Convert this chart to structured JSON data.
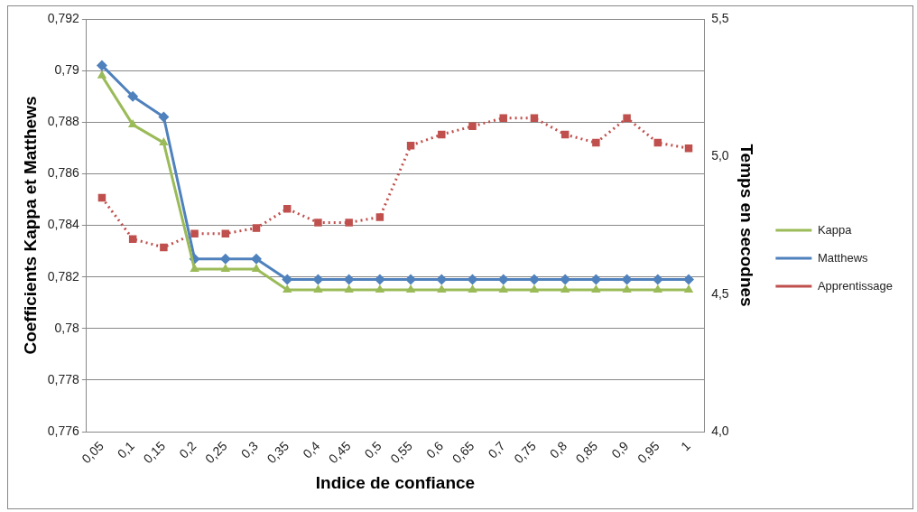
{
  "chart_data": {
    "type": "line",
    "xlabel": "Indice de confiance",
    "ylabel": "Coefficients Kappa et Matthews",
    "y2label": "Temps en secodnes",
    "categories": [
      "0,05",
      "0,1",
      "0,15",
      "0,2",
      "0,25",
      "0,3",
      "0,35",
      "0,4",
      "0,45",
      "0,5",
      "0,55",
      "0,6",
      "0,65",
      "0,7",
      "0,75",
      "0,8",
      "0,85",
      "0,9",
      "0,95",
      "1"
    ],
    "series": [
      {
        "name": "Kappa",
        "color": "#9bbb59",
        "marker": "triangle",
        "line_style": "solid",
        "values": [
          0.7898,
          0.7879,
          0.7872,
          0.7823,
          0.7823,
          0.7823,
          0.7815,
          0.7815,
          0.7815,
          0.7815,
          0.7815,
          0.7815,
          0.7815,
          0.7815,
          0.7815,
          0.7815,
          0.7815,
          0.7815,
          0.7815,
          0.7815
        ]
      },
      {
        "name": "Matthews",
        "color": "#4f81bd",
        "marker": "diamond",
        "line_style": "solid",
        "values": [
          0.7902,
          0.789,
          0.7882,
          0.7827,
          0.7827,
          0.7827,
          0.7819,
          0.7819,
          0.7819,
          0.7819,
          0.7819,
          0.7819,
          0.7819,
          0.7819,
          0.7819,
          0.7819,
          0.7819,
          0.7819,
          0.7819,
          0.7819
        ]
      },
      {
        "name": "Apprentissage",
        "color": "#c0504d",
        "marker": "square",
        "line_style": "dotted",
        "axis": "y2",
        "values": [
          4.85,
          4.7,
          4.67,
          4.72,
          4.72,
          4.74,
          4.81,
          4.76,
          4.76,
          4.78,
          5.04,
          5.08,
          5.11,
          5.14,
          5.14,
          5.08,
          5.05,
          5.14,
          5.05,
          5.03
        ]
      }
    ],
    "ylim": [
      0.776,
      0.792
    ],
    "yticks": [
      {
        "value": 0.776,
        "label": "0,776"
      },
      {
        "value": 0.778,
        "label": "0,778"
      },
      {
        "value": 0.78,
        "label": "0,78"
      },
      {
        "value": 0.782,
        "label": "0,782"
      },
      {
        "value": 0.784,
        "label": "0,784"
      },
      {
        "value": 0.786,
        "label": "0,786"
      },
      {
        "value": 0.788,
        "label": "0,788"
      },
      {
        "value": 0.79,
        "label": "0,79"
      },
      {
        "value": 0.792,
        "label": "0,792"
      }
    ],
    "y2lim": [
      4.0,
      5.5
    ],
    "y2ticks": [
      {
        "value": 4.0,
        "label": "4,0"
      },
      {
        "value": 4.5,
        "label": "4,5"
      },
      {
        "value": 5.0,
        "label": "5,0"
      },
      {
        "value": 5.5,
        "label": "5,5"
      }
    ],
    "grid": "y",
    "legend": "right"
  }
}
